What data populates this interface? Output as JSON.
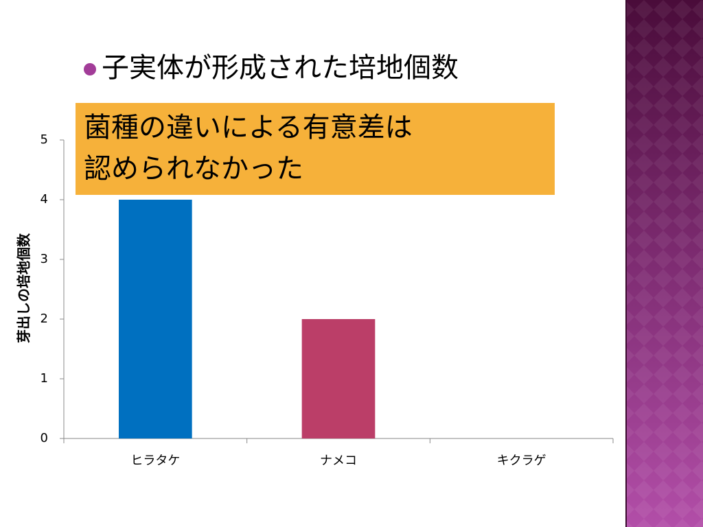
{
  "chart_data": {
    "type": "bar",
    "title": "子実体が形成された培地個数",
    "annotation": [
      "菌種の違いによる有意差は",
      "認められなかった"
    ],
    "y_label": "芽出しの培地個数",
    "categories": [
      "ヒラタケ",
      "ナメコ",
      "キクラゲ"
    ],
    "values": [
      4,
      2,
      0
    ],
    "colors": [
      "#0070c0",
      "#bb3e68"
    ],
    "ylim": [
      0,
      5
    ],
    "yticks": [
      0,
      1,
      2,
      3,
      4,
      5
    ],
    "grid": false
  }
}
